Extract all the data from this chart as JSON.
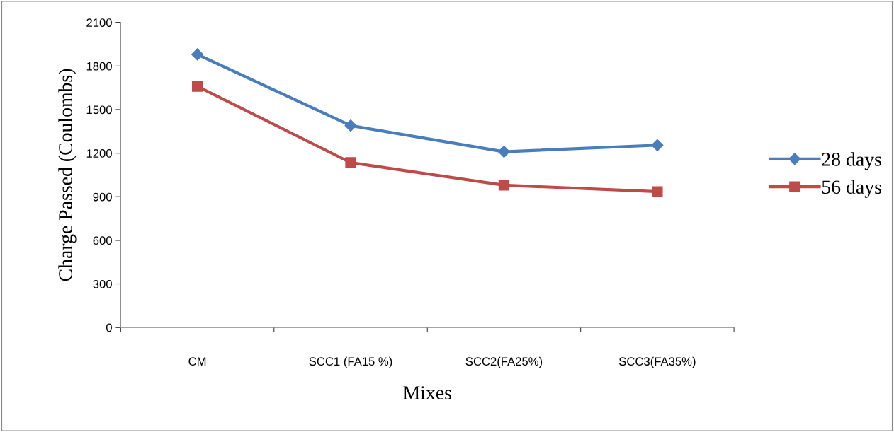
{
  "chart_data": {
    "type": "line",
    "xlabel": "Mixes",
    "ylabel": "Charge Passed (Coulombs)",
    "categories": [
      "CM",
      "SCC1 (FA15 %)",
      "SCC2(FA25%)",
      "SCC3(FA35%)"
    ],
    "series": [
      {
        "name": "28 days",
        "color": "#4a7ebb",
        "marker": "diamond",
        "values": [
          1880,
          1390,
          1210,
          1255
        ]
      },
      {
        "name": "56 days",
        "color": "#be4b48",
        "marker": "square",
        "values": [
          1660,
          1135,
          980,
          935
        ]
      }
    ],
    "ylim": [
      0,
      2100
    ],
    "yticks": [
      0,
      300,
      600,
      900,
      1200,
      1500,
      1800,
      2100
    ],
    "grid": false,
    "legend": "right",
    "line_style": "solid"
  }
}
